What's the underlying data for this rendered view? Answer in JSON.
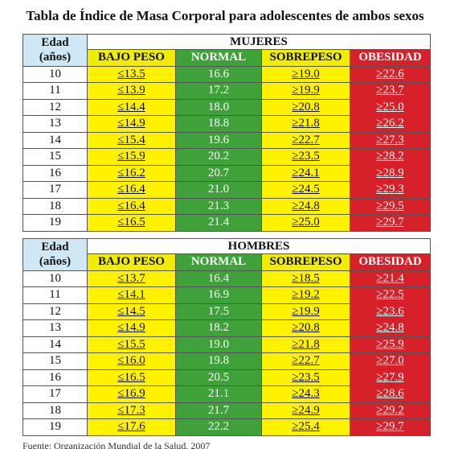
{
  "title": "Tabla de Índice de Masa Corporal para adolescentes de ambos sexos",
  "age_header_line1": "Edad",
  "age_header_line2": "(años)",
  "columns": [
    "BAJO PESO",
    "NORMAL",
    "SOBREPESO",
    "OBESIDAD"
  ],
  "colors": {
    "bajo_peso": "#fff200",
    "normal": "#3ea13a",
    "sobrepeso": "#fff200",
    "obesidad": "#d6212a",
    "edad_header": "#cfe8f6"
  },
  "mujeres": {
    "label": "MUJERES",
    "rows": [
      {
        "edad": "10",
        "bajo": "≤13.5",
        "normal": "16.6",
        "sobre": "≥19.0",
        "obes": "≥22.6"
      },
      {
        "edad": "11",
        "bajo": "≤13.9",
        "normal": "17.2",
        "sobre": "≥19.9",
        "obes": "≥23.7"
      },
      {
        "edad": "12",
        "bajo": "≤14.4",
        "normal": "18.0",
        "sobre": "≥20.8",
        "obes": "≥25.0"
      },
      {
        "edad": "13",
        "bajo": "≤14.9",
        "normal": "18.8",
        "sobre": "≥21.8",
        "obes": "≥26.2"
      },
      {
        "edad": "14",
        "bajo": "≤15.4",
        "normal": "19.6",
        "sobre": "≥22.7",
        "obes": "≥27.3"
      },
      {
        "edad": "15",
        "bajo": "≤15.9",
        "normal": "20.2",
        "sobre": "≥23.5",
        "obes": "≥28.2"
      },
      {
        "edad": "16",
        "bajo": "≤16.2",
        "normal": "20.7",
        "sobre": "≥24.1",
        "obes": "≥28.9"
      },
      {
        "edad": "17",
        "bajo": "≤16.4",
        "normal": "21.0",
        "sobre": "≥24.5",
        "obes": "≥29.3"
      },
      {
        "edad": "18",
        "bajo": "≤16.4",
        "normal": "21.3",
        "sobre": "≥24.8",
        "obes": "≥29.5"
      },
      {
        "edad": "19",
        "bajo": "≤16.5",
        "normal": "21.4",
        "sobre": "≥25.0",
        "obes": "≥29.7"
      }
    ]
  },
  "hombres": {
    "label": "HOMBRES",
    "rows": [
      {
        "edad": "10",
        "bajo": "≤13.7",
        "normal": "16.4",
        "sobre": "≥18.5",
        "obes": "≥21.4"
      },
      {
        "edad": "11",
        "bajo": "≤14.1",
        "normal": "16.9",
        "sobre": "≥19.2",
        "obes": "≥22.5"
      },
      {
        "edad": "12",
        "bajo": "≤14.5",
        "normal": "17.5",
        "sobre": "≥19.9",
        "obes": "≥23.6"
      },
      {
        "edad": "13",
        "bajo": "≤14.9",
        "normal": "18.2",
        "sobre": "≥20.8",
        "obes": "≥24.8"
      },
      {
        "edad": "14",
        "bajo": "≤15.5",
        "normal": "19.0",
        "sobre": "≥21.8",
        "obes": "≥25.9"
      },
      {
        "edad": "15",
        "bajo": "≤16.0",
        "normal": "19.8",
        "sobre": "≥22.7",
        "obes": "≥27.0"
      },
      {
        "edad": "16",
        "bajo": "≤16.5",
        "normal": "20.5",
        "sobre": "≥23.5",
        "obes": "≥27.9"
      },
      {
        "edad": "17",
        "bajo": "≤16.9",
        "normal": "21.1",
        "sobre": "≥24.3",
        "obes": "≥28.6"
      },
      {
        "edad": "18",
        "bajo": "≤17.3",
        "normal": "21.7",
        "sobre": "≥24.9",
        "obes": "≥29.2"
      },
      {
        "edad": "19",
        "bajo": "≤17.6",
        "normal": "22.2",
        "sobre": "≥25.4",
        "obes": "≥29.7"
      }
    ]
  },
  "source": "Fuente: Organización Mundial de la Salud, 2007"
}
